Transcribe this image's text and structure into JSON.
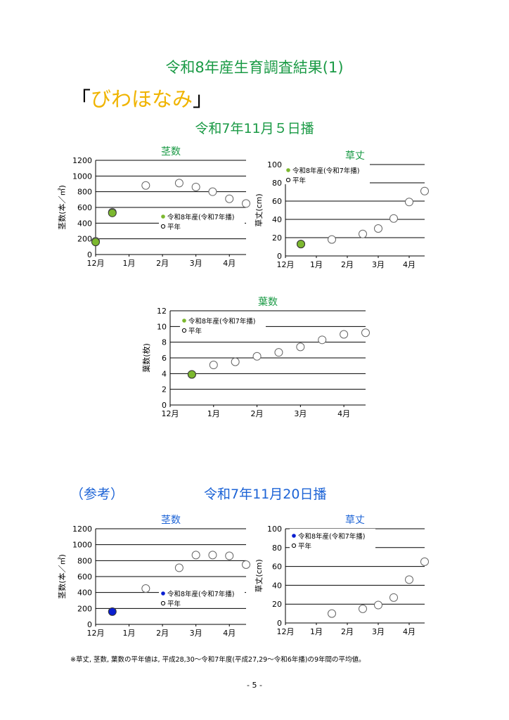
{
  "page": {
    "title": "令和8年産生育調査結果(1)",
    "variety_open": "「",
    "variety_name": "びわほなみ",
    "variety_close": "」",
    "section1_heading": "令和7年11月５日播",
    "section2_prefix": "（参考）",
    "section2_heading": "令和7年11月20日播",
    "footnote": "※草丈, 茎数, 葉数の平年値は, 平成28,30～令和7年度(平成27,29～令和6年播)の9年間の平均値。",
    "page_number": "- 5 -"
  },
  "colors": {
    "title_green": "#1a9a45",
    "variety_yellow": "#f0b400",
    "reference_blue": "#1c63d6",
    "current_year_green": "#7cb82f",
    "current_year_blue": "#0a1fd0",
    "normal_marker": "#888888"
  },
  "chart_data": [
    {
      "id": "stems-nov5",
      "type": "scatter",
      "title": "茎数",
      "ylabel": "茎数(本／㎡)",
      "ylim": [
        0,
        1200
      ],
      "yticks": [
        "0",
        "200",
        "400",
        "600",
        "800",
        "1000",
        "1200"
      ],
      "xlabels": [
        "12月",
        "1月",
        "2月",
        "3月",
        "4月"
      ],
      "xlim": [
        0,
        4.5
      ],
      "grid": true,
      "legend_placement": "center-right",
      "legend": [
        "令和8年産(令和7年播)",
        "平年"
      ],
      "series": [
        {
          "name": "令和8年産(令和7年播)",
          "marker": "filled",
          "color": "#7cb82f",
          "x": [
            0.0,
            0.5
          ],
          "y": [
            160,
            530
          ]
        },
        {
          "name": "平年",
          "marker": "hollow",
          "x": [
            0.0,
            0.5,
            1.5,
            2.5,
            3.0,
            3.5,
            4.0,
            4.5
          ],
          "y": [
            170,
            540,
            880,
            910,
            860,
            800,
            710,
            650
          ]
        }
      ]
    },
    {
      "id": "height-nov5",
      "type": "scatter",
      "title": "草丈",
      "ylabel": "草丈(cm)",
      "ylim": [
        0,
        100
      ],
      "yticks": [
        "0",
        "20",
        "40",
        "60",
        "80",
        "100"
      ],
      "xlabels": [
        "12月",
        "1月",
        "2月",
        "3月",
        "4月"
      ],
      "xlim": [
        0,
        4.5
      ],
      "grid": true,
      "legend_placement": "top-left",
      "legend": [
        "令和8年産(令和7年播)",
        "平年"
      ],
      "series": [
        {
          "name": "令和8年産(令和7年播)",
          "marker": "filled",
          "color": "#7cb82f",
          "x": [
            0.5
          ],
          "y": [
            13
          ]
        },
        {
          "name": "平年",
          "marker": "hollow",
          "x": [
            0.5,
            1.5,
            2.5,
            3.0,
            3.5,
            4.0,
            4.5
          ],
          "y": [
            13,
            18,
            24,
            30,
            41,
            59,
            71
          ]
        }
      ]
    },
    {
      "id": "leaves-nov5",
      "type": "scatter",
      "title": "葉数",
      "ylabel": "葉数(枚)",
      "ylim": [
        0,
        12
      ],
      "yticks": [
        "0",
        "2",
        "4",
        "6",
        "8",
        "10",
        "12"
      ],
      "xlabels": [
        "12月",
        "1月",
        "2月",
        "3月",
        "4月"
      ],
      "xlim": [
        0,
        4.5
      ],
      "grid": true,
      "legend_placement": "top-left",
      "legend": [
        "令和8年産(令和7年播)",
        "平年"
      ],
      "series": [
        {
          "name": "令和8年産(令和7年播)",
          "marker": "filled",
          "color": "#7cb82f",
          "x": [
            0.5
          ],
          "y": [
            3.9
          ]
        },
        {
          "name": "平年",
          "marker": "hollow",
          "x": [
            0.5,
            1.0,
            1.5,
            2.0,
            2.5,
            3.0,
            3.5,
            4.0,
            4.5
          ],
          "y": [
            3.9,
            5.1,
            5.5,
            6.2,
            6.7,
            7.4,
            8.3,
            9.0,
            9.2
          ]
        }
      ]
    },
    {
      "id": "stems-nov20",
      "type": "scatter",
      "title": "茎数",
      "ylabel": "茎数(本／㎡)",
      "ylim": [
        0,
        1200
      ],
      "yticks": [
        "0",
        "200",
        "400",
        "600",
        "800",
        "1000",
        "1200"
      ],
      "xlabels": [
        "12月",
        "1月",
        "2月",
        "3月",
        "4月"
      ],
      "xlim": [
        0,
        4.5
      ],
      "grid": true,
      "legend_placement": "bottom-right",
      "legend": [
        "令和8年産(令和7年播)",
        "平年"
      ],
      "series": [
        {
          "name": "令和8年産(令和7年播)",
          "marker": "filled",
          "color": "#0a1fd0",
          "x": [
            0.5
          ],
          "y": [
            160
          ]
        },
        {
          "name": "平年",
          "marker": "hollow",
          "x": [
            1.5,
            2.5,
            3.0,
            3.5,
            4.0,
            4.5
          ],
          "y": [
            450,
            710,
            870,
            870,
            860,
            750
          ]
        }
      ]
    },
    {
      "id": "height-nov20",
      "type": "scatter",
      "title": "草丈",
      "ylabel": "草丈(cm)",
      "ylim": [
        0,
        100
      ],
      "yticks": [
        "0",
        "20",
        "40",
        "60",
        "80",
        "100"
      ],
      "xlabels": [
        "12月",
        "1月",
        "2月",
        "3月",
        "4月"
      ],
      "xlim": [
        0,
        4.5
      ],
      "grid": true,
      "legend_placement": "top-left",
      "legend": [
        "令和8年産(令和7年播)",
        "平年"
      ],
      "series": [
        {
          "name": "令和8年産(令和7年播)",
          "marker": "filled",
          "color": "#0a1fd0",
          "x": [],
          "y": []
        },
        {
          "name": "平年",
          "marker": "hollow",
          "x": [
            1.5,
            2.5,
            3.0,
            3.5,
            4.0,
            4.5
          ],
          "y": [
            10,
            15,
            19,
            27,
            46,
            65
          ]
        }
      ]
    }
  ]
}
